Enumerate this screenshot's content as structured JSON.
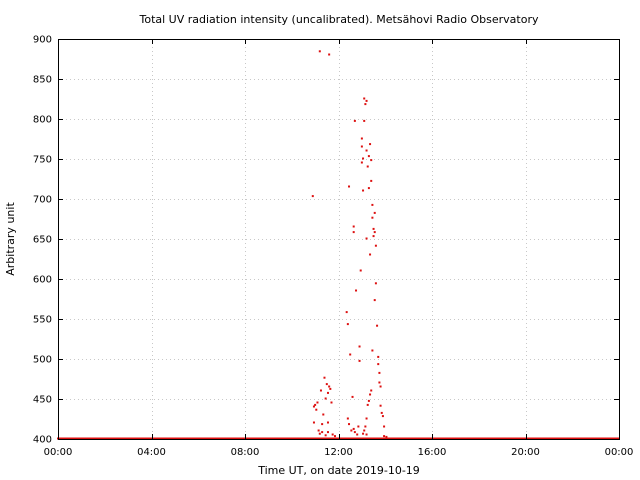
{
  "chart_data": {
    "type": "scatter",
    "title": "Total UV radiation intensity (uncalibrated). Metsähovi Radio Observatory",
    "xlabel": "Time UT, on date 2019-10-19",
    "ylabel": "Arbitrary unit",
    "xlim": [
      0,
      24
    ],
    "ylim": [
      400,
      900
    ],
    "x_ticks": [
      0,
      4,
      8,
      12,
      16,
      20,
      24
    ],
    "x_tick_labels": [
      "00:00",
      "04:00",
      "08:00",
      "12:00",
      "16:00",
      "20:00",
      "00:00"
    ],
    "y_ticks": [
      400,
      450,
      500,
      550,
      600,
      650,
      700,
      750,
      800,
      850,
      900
    ],
    "y_tick_labels": [
      "400",
      "450",
      "500",
      "550",
      "600",
      "650",
      "700",
      "750",
      "800",
      "850",
      "900"
    ],
    "grid": true,
    "marker_color": "#dd1010",
    "baseline": {
      "value": 400,
      "x_start": 0,
      "x_end": 24,
      "interval_hours": 0.05
    },
    "points": [
      [
        10.9,
        703
      ],
      [
        11.2,
        884
      ],
      [
        11.6,
        880
      ],
      [
        10.95,
        420
      ],
      [
        10.95,
        440
      ],
      [
        11.0,
        442
      ],
      [
        11.05,
        436
      ],
      [
        11.1,
        445
      ],
      [
        11.25,
        460
      ],
      [
        11.3,
        418
      ],
      [
        11.35,
        430
      ],
      [
        11.4,
        476
      ],
      [
        11.45,
        450
      ],
      [
        11.5,
        468
      ],
      [
        11.55,
        457
      ],
      [
        11.55,
        420
      ],
      [
        11.6,
        465
      ],
      [
        11.65,
        462
      ],
      [
        11.7,
        445
      ],
      [
        11.15,
        410
      ],
      [
        11.2,
        406
      ],
      [
        11.3,
        408
      ],
      [
        11.45,
        404
      ],
      [
        11.55,
        408
      ],
      [
        11.75,
        405
      ],
      [
        11.85,
        403
      ],
      [
        12.35,
        558
      ],
      [
        12.4,
        543
      ],
      [
        12.45,
        715
      ],
      [
        12.5,
        505
      ],
      [
        12.4,
        425
      ],
      [
        12.45,
        418
      ],
      [
        12.55,
        410
      ],
      [
        12.6,
        452
      ],
      [
        12.65,
        665
      ],
      [
        12.65,
        658
      ],
      [
        12.7,
        797
      ],
      [
        12.75,
        585
      ],
      [
        12.65,
        412
      ],
      [
        12.7,
        408
      ],
      [
        12.8,
        405
      ],
      [
        12.85,
        415
      ],
      [
        12.9,
        497
      ],
      [
        12.9,
        515
      ],
      [
        12.95,
        610
      ],
      [
        13.0,
        745
      ],
      [
        13.0,
        765
      ],
      [
        13.0,
        775
      ],
      [
        13.05,
        750
      ],
      [
        13.05,
        710
      ],
      [
        13.1,
        797
      ],
      [
        13.1,
        825
      ],
      [
        13.15,
        818
      ],
      [
        13.2,
        822
      ],
      [
        13.2,
        760
      ],
      [
        13.2,
        650
      ],
      [
        13.25,
        740
      ],
      [
        13.3,
        753
      ],
      [
        13.3,
        713
      ],
      [
        13.35,
        768
      ],
      [
        13.35,
        630
      ],
      [
        13.4,
        748
      ],
      [
        13.4,
        722
      ],
      [
        13.45,
        692
      ],
      [
        13.45,
        676
      ],
      [
        13.5,
        662
      ],
      [
        13.5,
        653
      ],
      [
        13.55,
        658
      ],
      [
        13.55,
        682
      ],
      [
        13.6,
        641
      ],
      [
        13.6,
        594
      ],
      [
        13.55,
        573
      ],
      [
        13.65,
        541
      ],
      [
        13.7,
        502
      ],
      [
        13.7,
        493
      ],
      [
        13.75,
        482
      ],
      [
        13.75,
        470
      ],
      [
        13.8,
        465
      ],
      [
        13.8,
        441
      ],
      [
        13.85,
        432
      ],
      [
        13.9,
        428
      ],
      [
        13.95,
        415
      ],
      [
        13.1,
        410
      ],
      [
        13.15,
        415
      ],
      [
        13.2,
        425
      ],
      [
        13.25,
        442
      ],
      [
        13.3,
        447
      ],
      [
        13.35,
        455
      ],
      [
        13.4,
        460
      ],
      [
        13.45,
        510
      ],
      [
        13.2,
        405
      ],
      [
        13.05,
        406
      ],
      [
        13.95,
        403
      ],
      [
        14.05,
        402
      ]
    ]
  }
}
